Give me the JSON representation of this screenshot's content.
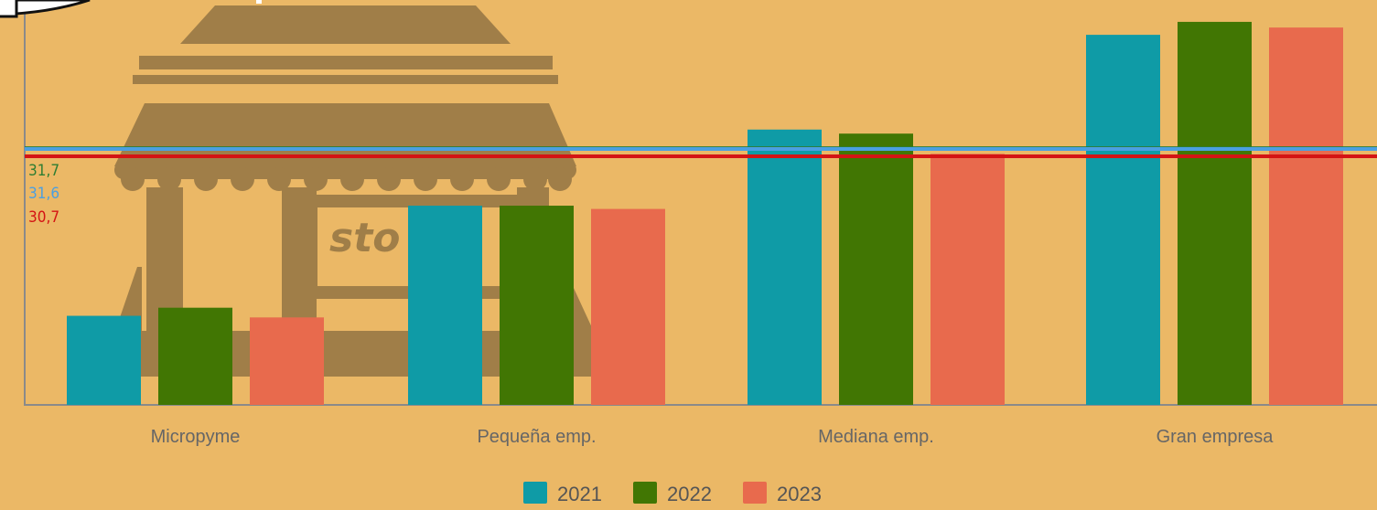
{
  "colors": {
    "background": "#ebb866",
    "illustration": "#a07e48",
    "axis": "#8a8a8a"
  },
  "chart_data": {
    "type": "bar",
    "categories": [
      "Micropyme",
      "Pequeña emp.",
      "Mediana emp.",
      "Gran empresa"
    ],
    "series": [
      {
        "name": "2021",
        "color": "#0f9ba6",
        "values": [
          11.0,
          24.6,
          34.0,
          45.7
        ]
      },
      {
        "name": "2022",
        "color": "#417603",
        "values": [
          12.0,
          24.6,
          33.5,
          47.3
        ]
      },
      {
        "name": "2023",
        "color": "#e86a4d",
        "values": [
          10.8,
          24.2,
          31.0,
          46.6
        ]
      }
    ],
    "reference_lines": [
      {
        "label": "31,7",
        "value": 31.7,
        "color": "#2e7d32"
      },
      {
        "label": "31,6",
        "value": 31.6,
        "color": "#4b9fe1"
      },
      {
        "label": "30,7",
        "value": 30.7,
        "color": "#d41414"
      }
    ],
    "ylim": [
      0,
      50
    ],
    "grid": false,
    "legend_position": "bottom"
  },
  "illustration": {
    "sign_text": "sto",
    "icon": "store-icon"
  }
}
